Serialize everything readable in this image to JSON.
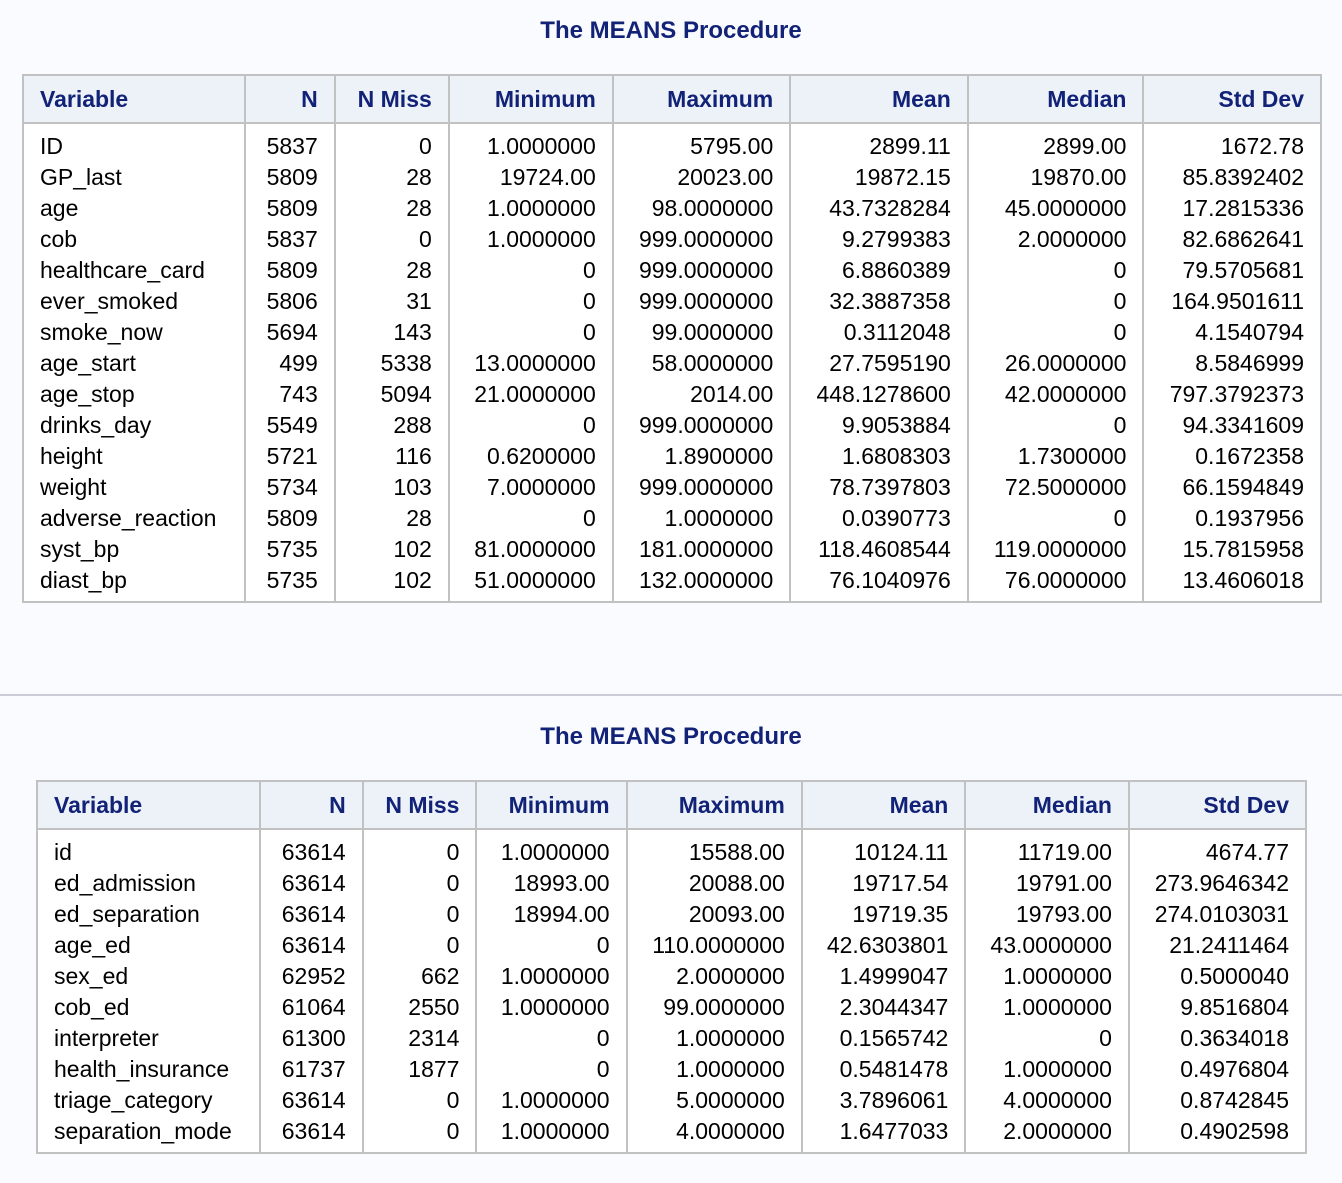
{
  "tables": [
    {
      "title": "The MEANS Procedure",
      "headers": [
        "Variable",
        "N",
        "N Miss",
        "Minimum",
        "Maximum",
        "Mean",
        "Median",
        "Std Dev"
      ],
      "rows": [
        [
          "ID",
          "5837",
          "0",
          "1.0000000",
          "5795.00",
          "2899.11",
          "2899.00",
          "1672.78"
        ],
        [
          "GP_last",
          "5809",
          "28",
          "19724.00",
          "20023.00",
          "19872.15",
          "19870.00",
          "85.8392402"
        ],
        [
          "age",
          "5809",
          "28",
          "1.0000000",
          "98.0000000",
          "43.7328284",
          "45.0000000",
          "17.2815336"
        ],
        [
          "cob",
          "5837",
          "0",
          "1.0000000",
          "999.0000000",
          "9.2799383",
          "2.0000000",
          "82.6862641"
        ],
        [
          "healthcare_card",
          "5809",
          "28",
          "0",
          "999.0000000",
          "6.8860389",
          "0",
          "79.5705681"
        ],
        [
          "ever_smoked",
          "5806",
          "31",
          "0",
          "999.0000000",
          "32.3887358",
          "0",
          "164.9501611"
        ],
        [
          "smoke_now",
          "5694",
          "143",
          "0",
          "99.0000000",
          "0.3112048",
          "0",
          "4.1540794"
        ],
        [
          "age_start",
          "499",
          "5338",
          "13.0000000",
          "58.0000000",
          "27.7595190",
          "26.0000000",
          "8.5846999"
        ],
        [
          "age_stop",
          "743",
          "5094",
          "21.0000000",
          "2014.00",
          "448.1278600",
          "42.0000000",
          "797.3792373"
        ],
        [
          "drinks_day",
          "5549",
          "288",
          "0",
          "999.0000000",
          "9.9053884",
          "0",
          "94.3341609"
        ],
        [
          "height",
          "5721",
          "116",
          "0.6200000",
          "1.8900000",
          "1.6808303",
          "1.7300000",
          "0.1672358"
        ],
        [
          "weight",
          "5734",
          "103",
          "7.0000000",
          "999.0000000",
          "78.7397803",
          "72.5000000",
          "66.1594849"
        ],
        [
          "adverse_reaction",
          "5809",
          "28",
          "0",
          "1.0000000",
          "0.0390773",
          "0",
          "0.1937956"
        ],
        [
          "syst_bp",
          "5735",
          "102",
          "81.0000000",
          "181.0000000",
          "118.4608544",
          "119.0000000",
          "15.7815958"
        ],
        [
          "diast_bp",
          "5735",
          "102",
          "51.0000000",
          "132.0000000",
          "76.1040976",
          "76.0000000",
          "13.4606018"
        ]
      ]
    },
    {
      "title": "The MEANS Procedure",
      "headers": [
        "Variable",
        "N",
        "N Miss",
        "Minimum",
        "Maximum",
        "Mean",
        "Median",
        "Std Dev"
      ],
      "rows": [
        [
          "id",
          "63614",
          "0",
          "1.0000000",
          "15588.00",
          "10124.11",
          "11719.00",
          "4674.77"
        ],
        [
          "ed_admission",
          "63614",
          "0",
          "18993.00",
          "20088.00",
          "19717.54",
          "19791.00",
          "273.9646342"
        ],
        [
          "ed_separation",
          "63614",
          "0",
          "18994.00",
          "20093.00",
          "19719.35",
          "19793.00",
          "274.0103031"
        ],
        [
          "age_ed",
          "63614",
          "0",
          "0",
          "110.0000000",
          "42.6303801",
          "43.0000000",
          "21.2411464"
        ],
        [
          "sex_ed",
          "62952",
          "662",
          "1.0000000",
          "2.0000000",
          "1.4999047",
          "1.0000000",
          "0.5000040"
        ],
        [
          "cob_ed",
          "61064",
          "2550",
          "1.0000000",
          "99.0000000",
          "2.3044347",
          "1.0000000",
          "9.8516804"
        ],
        [
          "interpreter",
          "61300",
          "2314",
          "0",
          "1.0000000",
          "0.1565742",
          "0",
          "0.3634018"
        ],
        [
          "health_insurance",
          "61737",
          "1877",
          "0",
          "1.0000000",
          "0.5481478",
          "1.0000000",
          "0.4976804"
        ],
        [
          "triage_category",
          "63614",
          "0",
          "1.0000000",
          "5.0000000",
          "3.7896061",
          "4.0000000",
          "0.8742845"
        ],
        [
          "separation_mode",
          "63614",
          "0",
          "1.0000000",
          "4.0000000",
          "1.6477033",
          "2.0000000",
          "0.4902598"
        ]
      ]
    }
  ]
}
